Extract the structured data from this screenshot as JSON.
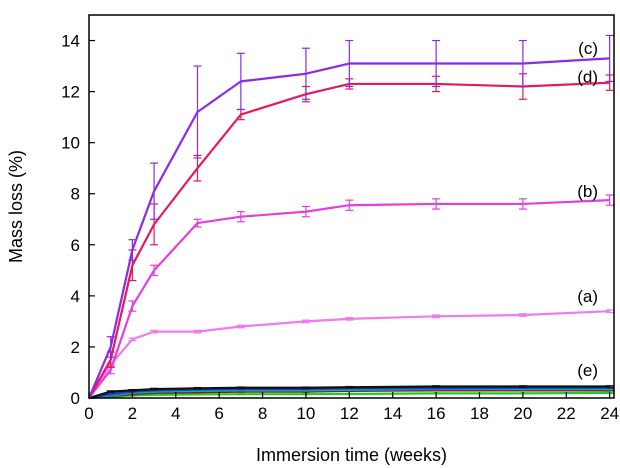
{
  "chart_data": {
    "type": "line",
    "xlabel": "Immersion time (weeks)",
    "ylabel": "Mass loss (%)",
    "xlim": [
      0,
      24.2
    ],
    "ylim": [
      0,
      15
    ],
    "xticks": [
      0,
      2,
      4,
      6,
      8,
      10,
      12,
      14,
      16,
      18,
      20,
      22,
      24
    ],
    "yticks": [
      0,
      2,
      4,
      6,
      8,
      10,
      12,
      14
    ],
    "grid": false,
    "series": [
      {
        "name": "(c)",
        "color": "#8B2BE2",
        "x": [
          0,
          1,
          2,
          3,
          5,
          7,
          10,
          12,
          16,
          20,
          24
        ],
        "y": [
          0,
          2.0,
          5.8,
          8.1,
          11.2,
          12.4,
          12.7,
          13.1,
          13.1,
          13.1,
          13.3
        ],
        "err": [
          0,
          0.4,
          0.4,
          1.1,
          1.8,
          1.1,
          1.0,
          0.9,
          0.9,
          0.9,
          0.9
        ]
      },
      {
        "name": "(d)",
        "color": "#E6195A",
        "x": [
          0,
          1,
          2,
          3,
          5,
          7,
          10,
          12,
          16,
          20,
          24
        ],
        "y": [
          0,
          1.5,
          5.2,
          6.8,
          9.0,
          11.1,
          11.9,
          12.3,
          12.3,
          12.2,
          12.35
        ],
        "err": [
          0,
          0.3,
          0.6,
          0.8,
          0.5,
          0.2,
          0.3,
          0.2,
          0.3,
          0.5,
          0.3
        ]
      },
      {
        "name": "(b)",
        "color": "#E040E0",
        "x": [
          0,
          1,
          2,
          3,
          5,
          7,
          10,
          12,
          16,
          20,
          24
        ],
        "y": [
          0,
          1.1,
          3.6,
          5.0,
          6.85,
          7.1,
          7.3,
          7.55,
          7.6,
          7.6,
          7.75
        ],
        "err": [
          0,
          0.15,
          0.2,
          0.2,
          0.15,
          0.2,
          0.2,
          0.2,
          0.2,
          0.2,
          0.2
        ]
      },
      {
        "name": "(a)",
        "color": "#F07AF0",
        "x": [
          0,
          1,
          2,
          3,
          5,
          7,
          10,
          12,
          16,
          20,
          24
        ],
        "y": [
          0,
          1.3,
          2.3,
          2.6,
          2.6,
          2.8,
          3.0,
          3.1,
          3.2,
          3.25,
          3.4
        ],
        "err": [
          0,
          0.05,
          0.05,
          0.05,
          0.05,
          0.05,
          0.05,
          0.05,
          0.05,
          0.05,
          0.05
        ]
      },
      {
        "name": "(e)",
        "color": "#111111",
        "x": [
          0,
          1,
          2,
          3,
          5,
          7,
          10,
          12,
          16,
          20,
          24
        ],
        "y": [
          0,
          0.25,
          0.3,
          0.35,
          0.38,
          0.4,
          0.4,
          0.42,
          0.45,
          0.45,
          0.45
        ],
        "err": [
          0,
          0.03,
          0.03,
          0.03,
          0.03,
          0.03,
          0.03,
          0.03,
          0.03,
          0.03,
          0.03
        ]
      },
      {
        "name": "",
        "color": "#1f3fbf",
        "x": [
          0,
          1,
          2,
          3,
          5,
          7,
          10,
          12,
          16,
          20,
          24
        ],
        "y": [
          0,
          0.15,
          0.25,
          0.3,
          0.33,
          0.35,
          0.35,
          0.38,
          0.38,
          0.4,
          0.4
        ],
        "err": [
          0,
          0.02,
          0.02,
          0.02,
          0.02,
          0.02,
          0.02,
          0.02,
          0.02,
          0.02,
          0.02
        ]
      },
      {
        "name": "",
        "color": "#00b0c0",
        "x": [
          0,
          1,
          2,
          3,
          5,
          7,
          10,
          12,
          16,
          20,
          24
        ],
        "y": [
          0,
          0.1,
          0.2,
          0.25,
          0.28,
          0.3,
          0.3,
          0.32,
          0.35,
          0.35,
          0.35
        ],
        "err": [
          0,
          0.02,
          0.02,
          0.02,
          0.02,
          0.02,
          0.02,
          0.02,
          0.02,
          0.02,
          0.02
        ]
      },
      {
        "name": "",
        "color": "#8b1a1a",
        "x": [
          0,
          1,
          2,
          3,
          5,
          7,
          10,
          12,
          16,
          20,
          24
        ],
        "y": [
          0,
          0.08,
          0.15,
          0.2,
          0.22,
          0.25,
          0.25,
          0.28,
          0.3,
          0.3,
          0.3
        ],
        "err": [
          0,
          0.02,
          0.02,
          0.02,
          0.02,
          0.02,
          0.02,
          0.02,
          0.02,
          0.02,
          0.02
        ]
      },
      {
        "name": "",
        "color": "#22cc22",
        "x": [
          0,
          1,
          2,
          3,
          5,
          7,
          10,
          12,
          16,
          20,
          24
        ],
        "y": [
          0,
          0.05,
          0.1,
          0.12,
          0.14,
          0.15,
          0.15,
          0.16,
          0.18,
          0.18,
          0.2
        ],
        "err": [
          0,
          0.02,
          0.02,
          0.02,
          0.02,
          0.02,
          0.02,
          0.02,
          0.02,
          0.02,
          0.02
        ]
      }
    ]
  }
}
